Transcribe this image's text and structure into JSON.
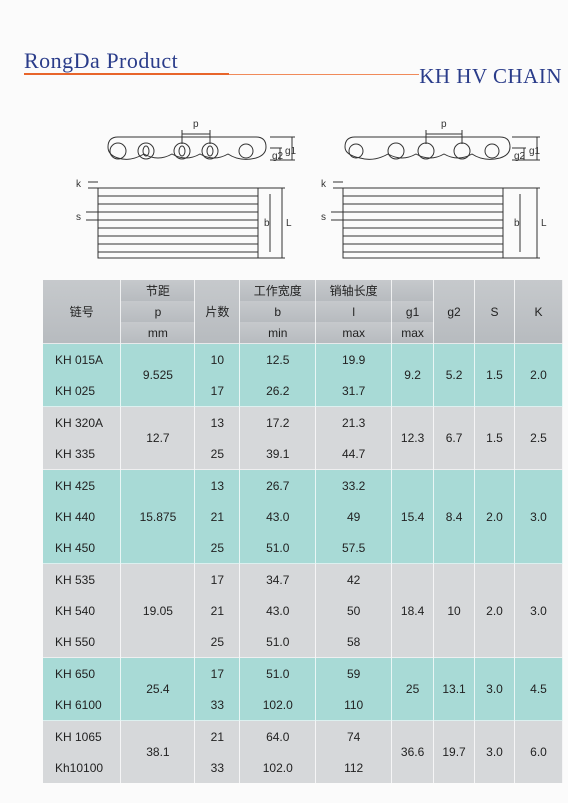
{
  "header": {
    "brand": "RongDa Product",
    "series": "KH HV CHAIN"
  },
  "drawing": {
    "left": {
      "p_label": "p",
      "g2_label": "g2",
      "g1_label": "g1",
      "k_label": "k",
      "s_label": "s",
      "b_label": "b",
      "L_label": "L"
    },
    "right": {
      "p_label": "p",
      "g2_label": "g2",
      "g1_label": "g1",
      "k_label": "k",
      "s_label": "s",
      "b_label": "b",
      "L_label": "L"
    }
  },
  "table": {
    "headers": {
      "chain_no": "链号",
      "pitch_cn": "节距",
      "pitch_sym": "p",
      "pitch_unit": "mm",
      "plates": "片数",
      "width_cn": "工作宽度",
      "width_sym": "b",
      "width_unit": "min",
      "pin_cn": "销轴长度",
      "pin_sym": "l",
      "pin_unit": "max",
      "g1": "g1",
      "g1_unit": "max",
      "g2": "g2",
      "s": "S",
      "k": "K"
    },
    "groups": [
      {
        "pitch": "9.525",
        "g1": "9.2",
        "g2": "5.2",
        "s": "1.5",
        "k": "2.0",
        "rows": [
          {
            "model": "KH 015A",
            "plates": "10",
            "b": "12.5",
            "l": "19.9"
          },
          {
            "model": "KH 025",
            "plates": "17",
            "b": "26.2",
            "l": "31.7"
          }
        ]
      },
      {
        "pitch": "12.7",
        "g1": "12.3",
        "g2": "6.7",
        "s": "1.5",
        "k": "2.5",
        "rows": [
          {
            "model": "KH 320A",
            "plates": "13",
            "b": "17.2",
            "l": "21.3"
          },
          {
            "model": "KH 335",
            "plates": "25",
            "b": "39.1",
            "l": "44.7"
          }
        ]
      },
      {
        "pitch": "15.875",
        "g1": "15.4",
        "g2": "8.4",
        "s": "2.0",
        "k": "3.0",
        "rows": [
          {
            "model": "KH 425",
            "plates": "13",
            "b": "26.7",
            "l": "33.2"
          },
          {
            "model": "KH 440",
            "plates": "21",
            "b": "43.0",
            "l": "49"
          },
          {
            "model": "KH 450",
            "plates": "25",
            "b": "51.0",
            "l": "57.5"
          }
        ]
      },
      {
        "pitch": "19.05",
        "g1": "18.4",
        "g2": "10",
        "s": "2.0",
        "k": "3.0",
        "rows": [
          {
            "model": "KH 535",
            "plates": "17",
            "b": "34.7",
            "l": "42"
          },
          {
            "model": "KH 540",
            "plates": "21",
            "b": "43.0",
            "l": "50"
          },
          {
            "model": "KH 550",
            "plates": "25",
            "b": "51.0",
            "l": "58"
          }
        ]
      },
      {
        "pitch": "25.4",
        "g1": "25",
        "g2": "13.1",
        "s": "3.0",
        "k": "4.5",
        "rows": [
          {
            "model": "KH 650",
            "plates": "17",
            "b": "51.0",
            "l": "59"
          },
          {
            "model": "KH 6100",
            "plates": "33",
            "b": "102.0",
            "l": "110"
          }
        ]
      },
      {
        "pitch": "38.1",
        "g1": "36.6",
        "g2": "19.7",
        "s": "3.0",
        "k": "6.0",
        "rows": [
          {
            "model": "KH 1065",
            "plates": "21",
            "b": "64.0",
            "l": "74"
          },
          {
            "model": "Kh10100",
            "plates": "33",
            "b": "102.0",
            "l": "112"
          }
        ]
      }
    ]
  }
}
